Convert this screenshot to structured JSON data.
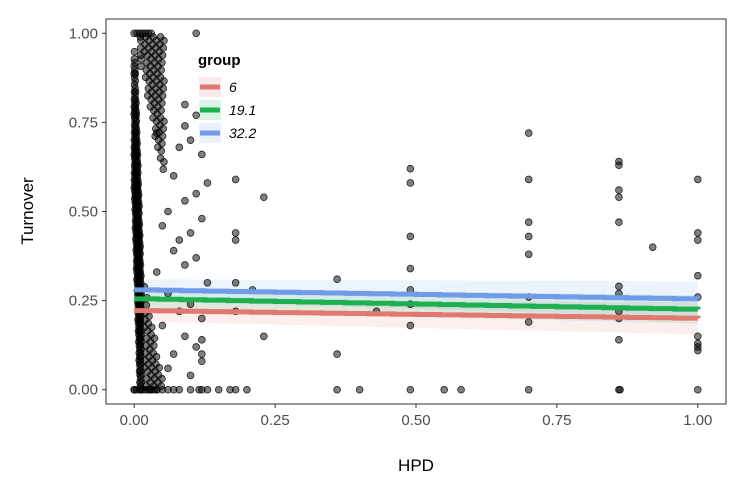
{
  "chart_data": {
    "type": "scatter",
    "xlabel": "HPD",
    "ylabel": "Turnover",
    "xlim": [
      -0.05,
      1.05
    ],
    "ylim": [
      -0.04,
      1.04
    ],
    "x_ticks": [
      "0.00",
      "0.25",
      "0.50",
      "0.75",
      "1.00"
    ],
    "y_ticks": [
      "0.00",
      "0.25",
      "0.50",
      "0.75",
      "1.00"
    ],
    "grid": false,
    "legend": {
      "title": "group",
      "position": "top-left"
    },
    "series": [
      {
        "name": "6",
        "color": "#e07a70",
        "x": [
          0.0,
          1.0
        ],
        "y": [
          0.222,
          0.2
        ],
        "band": [
          0.03,
          0.045
        ]
      },
      {
        "name": "19.1",
        "color": "#1db04f",
        "x": [
          0.0,
          1.0
        ],
        "y": [
          0.255,
          0.225
        ],
        "band": [
          0.03,
          0.04
        ]
      },
      {
        "name": "32.2",
        "color": "#6f9be8",
        "x": [
          0.0,
          1.0
        ],
        "y": [
          0.28,
          0.254
        ],
        "band": [
          0.03,
          0.05
        ]
      }
    ],
    "points": [
      [
        0.0,
        1.0
      ],
      [
        0.005,
        1.0
      ],
      [
        0.01,
        1.0
      ],
      [
        0.015,
        1.0
      ],
      [
        0.02,
        1.0
      ],
      [
        0.025,
        1.0
      ],
      [
        0.03,
        1.0
      ],
      [
        0.11,
        1.0
      ],
      [
        0.0,
        0.0
      ],
      [
        0.005,
        0.0
      ],
      [
        0.01,
        0.0
      ],
      [
        0.015,
        0.0
      ],
      [
        0.02,
        0.0
      ],
      [
        0.025,
        0.0
      ],
      [
        0.03,
        0.0
      ],
      [
        0.035,
        0.0
      ],
      [
        0.04,
        0.0
      ],
      [
        0.05,
        0.0
      ],
      [
        0.06,
        0.0
      ],
      [
        0.07,
        0.0
      ],
      [
        0.08,
        0.0
      ],
      [
        0.1,
        0.0
      ],
      [
        0.115,
        0.0
      ],
      [
        0.12,
        0.0
      ],
      [
        0.13,
        0.0
      ],
      [
        0.15,
        0.0
      ],
      [
        0.17,
        0.0
      ],
      [
        0.18,
        0.0
      ],
      [
        0.2,
        0.0
      ],
      [
        0.36,
        0.0
      ],
      [
        0.4,
        0.0
      ],
      [
        0.49,
        0.0
      ],
      [
        0.55,
        0.0
      ],
      [
        0.58,
        0.0
      ],
      [
        0.7,
        0.0
      ],
      [
        0.86,
        0.0
      ],
      [
        0.862,
        0.0
      ],
      [
        1.0,
        0.0
      ],
      [
        0.09,
        0.8
      ],
      [
        0.11,
        0.77
      ],
      [
        0.09,
        0.74
      ],
      [
        0.1,
        0.7
      ],
      [
        0.04,
        0.72
      ],
      [
        0.08,
        0.68
      ],
      [
        0.12,
        0.66
      ],
      [
        0.07,
        0.6
      ],
      [
        0.13,
        0.58
      ],
      [
        0.11,
        0.55
      ],
      [
        0.09,
        0.53
      ],
      [
        0.06,
        0.5
      ],
      [
        0.12,
        0.48
      ],
      [
        0.05,
        0.46
      ],
      [
        0.1,
        0.44
      ],
      [
        0.08,
        0.42
      ],
      [
        0.07,
        0.39
      ],
      [
        0.11,
        0.37
      ],
      [
        0.09,
        0.35
      ],
      [
        0.04,
        0.33
      ],
      [
        0.13,
        0.3
      ],
      [
        0.06,
        0.27
      ],
      [
        0.1,
        0.24
      ],
      [
        0.08,
        0.22
      ],
      [
        0.12,
        0.2
      ],
      [
        0.05,
        0.18
      ],
      [
        0.09,
        0.15
      ],
      [
        0.11,
        0.12
      ],
      [
        0.07,
        0.1
      ],
      [
        0.12,
        0.08
      ],
      [
        0.06,
        0.06
      ],
      [
        0.1,
        0.04
      ],
      [
        0.18,
        0.59
      ],
      [
        0.18,
        0.44
      ],
      [
        0.18,
        0.42
      ],
      [
        0.18,
        0.3
      ],
      [
        0.18,
        0.22
      ],
      [
        0.12,
        0.1
      ],
      [
        0.12,
        0.14
      ],
      [
        0.23,
        0.54
      ],
      [
        0.23,
        0.15
      ],
      [
        0.21,
        0.28
      ],
      [
        0.36,
        0.31
      ],
      [
        0.36,
        0.1
      ],
      [
        0.43,
        0.22
      ],
      [
        0.49,
        0.62
      ],
      [
        0.49,
        0.58
      ],
      [
        0.49,
        0.43
      ],
      [
        0.49,
        0.34
      ],
      [
        0.49,
        0.28
      ],
      [
        0.49,
        0.24
      ],
      [
        0.49,
        0.18
      ],
      [
        0.7,
        0.72
      ],
      [
        0.7,
        0.59
      ],
      [
        0.7,
        0.47
      ],
      [
        0.7,
        0.43
      ],
      [
        0.7,
        0.38
      ],
      [
        0.7,
        0.26
      ],
      [
        0.7,
        0.19
      ],
      [
        0.86,
        0.64
      ],
      [
        0.86,
        0.63
      ],
      [
        0.86,
        0.56
      ],
      [
        0.86,
        0.54
      ],
      [
        0.86,
        0.47
      ],
      [
        0.86,
        0.29
      ],
      [
        0.86,
        0.27
      ],
      [
        0.86,
        0.22
      ],
      [
        0.86,
        0.2
      ],
      [
        0.86,
        0.14
      ],
      [
        0.92,
        0.4
      ],
      [
        1.0,
        0.59
      ],
      [
        1.0,
        0.44
      ],
      [
        1.0,
        0.42
      ],
      [
        1.0,
        0.32
      ],
      [
        1.0,
        0.26
      ],
      [
        1.0,
        0.15
      ],
      [
        1.0,
        0.13
      ],
      [
        1.0,
        0.12
      ],
      [
        1.0,
        0.11
      ]
    ]
  }
}
